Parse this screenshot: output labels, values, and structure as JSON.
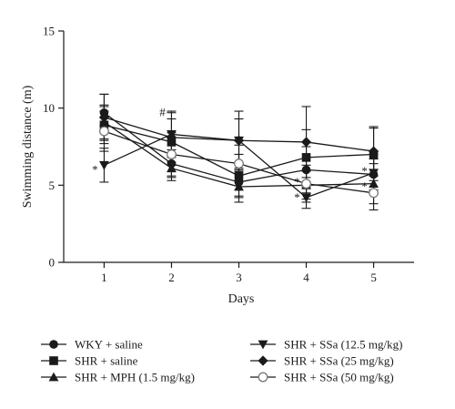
{
  "chart_data": {
    "type": "line",
    "title": "",
    "xlabel": "Days",
    "ylabel": "Swimming distance (m)",
    "categories": [
      1,
      2,
      3,
      4,
      5
    ],
    "xlim": [
      0.4,
      5.6
    ],
    "ylim": [
      0,
      15
    ],
    "yticks": [
      0,
      5,
      10,
      15
    ],
    "grid": false,
    "legend_position": "bottom",
    "series": [
      {
        "name": "WKY + saline",
        "marker": "filled-circle",
        "values": [
          9.7,
          6.4,
          5.2,
          6.0,
          5.7
        ],
        "err": [
          1.2,
          0.9,
          0.9,
          1.5,
          1.0
        ]
      },
      {
        "name": "SHR + saline",
        "marker": "filled-square",
        "values": [
          8.9,
          7.8,
          5.6,
          6.8,
          7.0
        ],
        "err": [
          1.2,
          1.5,
          1.4,
          1.8,
          1.7
        ]
      },
      {
        "name": "SHR + MPH (1.5 mg/kg)",
        "marker": "filled-triangle-up",
        "values": [
          9.1,
          6.1,
          4.9,
          5.0,
          5.1
        ],
        "err": [
          1.1,
          0.8,
          1.0,
          0.9,
          1.3
        ]
      },
      {
        "name": "SHR + SSa (12.5 mg/kg)",
        "marker": "filled-triangle-down",
        "values": [
          6.3,
          8.3,
          7.9,
          4.2,
          5.8
        ],
        "err": [
          1.1,
          1.5,
          1.9,
          0.7,
          1.2
        ]
      },
      {
        "name": "SHR + SSa (25 mg/kg)",
        "marker": "filled-diamond",
        "values": [
          9.4,
          8.1,
          7.9,
          7.8,
          7.2
        ],
        "err": [
          1.5,
          1.6,
          1.4,
          2.3,
          1.6
        ]
      },
      {
        "name": "SHR + SSa (50 mg/kg)",
        "marker": "open-circle",
        "values": [
          8.5,
          7.0,
          6.4,
          5.1,
          4.5
        ],
        "err": [
          1.3,
          1.4,
          1.2,
          1.2,
          1.1
        ]
      }
    ],
    "annotations": [
      {
        "text": "*",
        "x": 1,
        "y": 6.3
      },
      {
        "text": "#",
        "x": 2,
        "y": 9.7
      },
      {
        "text": "*",
        "x": 4,
        "y": 5.5
      },
      {
        "text": "*",
        "x": 4,
        "y": 4.5
      },
      {
        "text": "*",
        "x": 5,
        "y": 6.2
      },
      {
        "text": "*",
        "x": 5,
        "y": 5.2
      }
    ]
  }
}
